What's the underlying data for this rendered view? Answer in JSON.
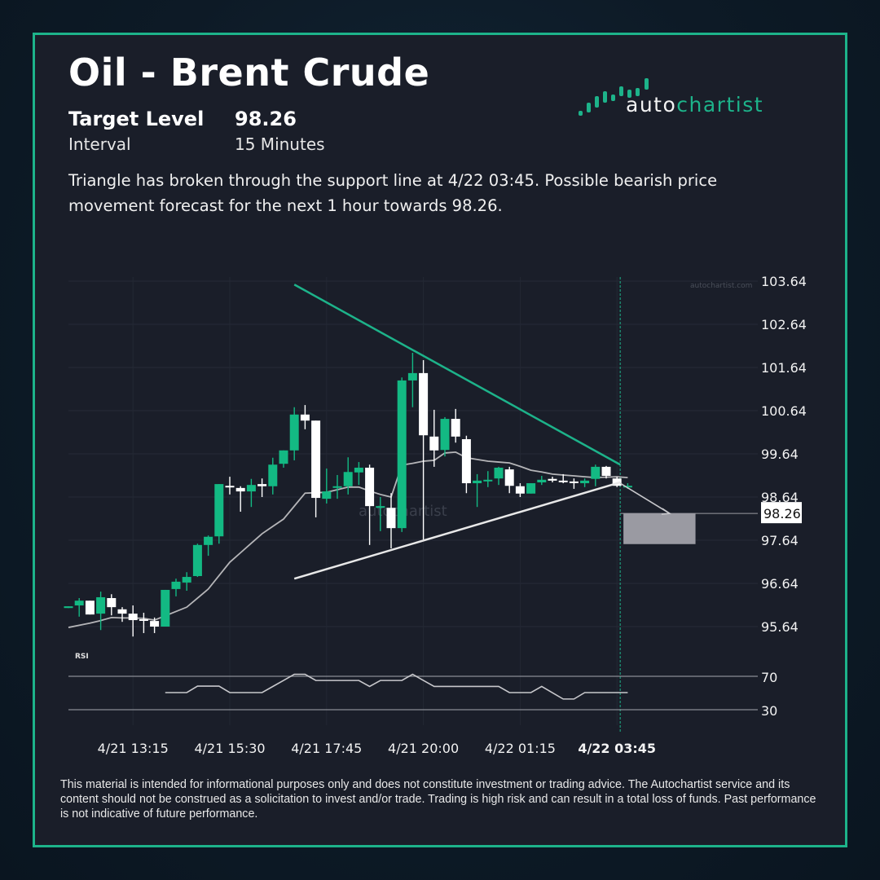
{
  "header": {
    "title": "Oil - Brent Crude",
    "target_label": "Target Level",
    "target_value": "98.26",
    "interval_label": "Interval",
    "interval_value": "15 Minutes",
    "description": "Triangle has broken through the support line at 4/22 03:45. Possible bearish price movement forecast for the next 1 hour towards 98.26."
  },
  "logo": {
    "text_a": "auto",
    "text_b": "chartist"
  },
  "disclaimer": "This material is intended for informational purposes only and does not constitute investment or trading advice. The Autochartist service and its content should not be construed as a solicitation to invest and/or trade. Trading is high risk and can result in a total loss of funds. Past performance is not indicative of future performance.",
  "colors": {
    "accent": "#1db38a",
    "bull": "#13b983",
    "bear": "#ffffff",
    "card_bg": "#1a1e29",
    "target_box": "#9a9aa2",
    "ma_line": "#b5b5b8"
  },
  "chart_data": {
    "type": "candlestick",
    "watermark": "autochartist",
    "site_label": "autochartist.com",
    "y_ticks": [
      "103.64",
      "102.64",
      "101.64",
      "100.64",
      "99.64",
      "98.64",
      "97.64",
      "96.64",
      "95.64"
    ],
    "ylim": [
      95.2,
      103.7
    ],
    "x_ticks": [
      {
        "bar": 6,
        "label": "4/21 13:15"
      },
      {
        "bar": 15,
        "label": "4/21 15:30"
      },
      {
        "bar": 24,
        "label": "4/21 17:45"
      },
      {
        "bar": 33,
        "label": "4/21 20:00"
      },
      {
        "bar": 42,
        "label": "4/22 01:15"
      },
      {
        "bar": 51,
        "label": "4/22 03:45",
        "bold": true
      }
    ],
    "candles": [
      [
        96.07,
        96.11,
        96.07,
        96.11
      ],
      [
        96.13,
        96.3,
        95.87,
        96.24
      ],
      [
        96.24,
        96.24,
        95.92,
        95.92
      ],
      [
        95.94,
        96.45,
        95.56,
        96.32
      ],
      [
        96.3,
        96.39,
        95.9,
        96.09
      ],
      [
        96.04,
        96.09,
        95.75,
        95.94
      ],
      [
        95.94,
        96.13,
        95.41,
        95.79
      ],
      [
        95.81,
        95.96,
        95.49,
        95.8
      ],
      [
        95.77,
        95.85,
        95.49,
        95.64
      ],
      [
        95.64,
        96.49,
        95.64,
        96.49
      ],
      [
        96.51,
        96.75,
        96.34,
        96.68
      ],
      [
        96.66,
        96.9,
        96.47,
        96.79
      ],
      [
        96.81,
        97.56,
        96.79,
        97.53
      ],
      [
        97.53,
        97.75,
        97.28,
        97.72
      ],
      [
        97.73,
        98.94,
        97.56,
        98.94
      ],
      [
        98.9,
        99.11,
        98.7,
        98.87
      ],
      [
        98.85,
        98.89,
        98.3,
        98.77
      ],
      [
        98.77,
        99.06,
        98.41,
        98.92
      ],
      [
        98.94,
        99.07,
        98.64,
        98.89
      ],
      [
        98.89,
        99.55,
        98.7,
        99.39
      ],
      [
        99.41,
        99.72,
        99.32,
        99.72
      ],
      [
        99.72,
        100.72,
        99.49,
        100.55
      ],
      [
        100.55,
        100.77,
        100.21,
        100.41
      ],
      [
        100.41,
        100.41,
        98.17,
        98.62
      ],
      [
        98.6,
        99.3,
        98.49,
        98.77
      ],
      [
        98.88,
        99.15,
        98.6,
        98.89
      ],
      [
        98.89,
        99.56,
        98.7,
        99.22
      ],
      [
        99.21,
        99.45,
        98.92,
        99.32
      ],
      [
        99.32,
        99.39,
        97.53,
        98.43
      ],
      [
        98.39,
        98.64,
        97.85,
        98.43
      ],
      [
        98.39,
        98.73,
        97.45,
        97.92
      ],
      [
        97.92,
        101.41,
        97.83,
        101.34
      ],
      [
        101.34,
        101.98,
        100.72,
        101.51
      ],
      [
        101.51,
        101.81,
        97.66,
        100.07
      ],
      [
        100.04,
        100.66,
        99.34,
        99.72
      ],
      [
        99.73,
        100.49,
        99.58,
        100.45
      ],
      [
        100.45,
        100.68,
        99.9,
        100.04
      ],
      [
        99.98,
        100.06,
        98.73,
        98.96
      ],
      [
        98.96,
        99.17,
        98.41,
        99.02
      ],
      [
        99.03,
        99.24,
        98.87,
        99.04
      ],
      [
        99.07,
        99.34,
        98.92,
        99.32
      ],
      [
        99.28,
        99.34,
        98.73,
        98.9
      ],
      [
        98.89,
        98.96,
        98.64,
        98.72
      ],
      [
        98.72,
        98.96,
        98.72,
        98.96
      ],
      [
        98.98,
        99.13,
        98.92,
        99.04
      ],
      [
        99.06,
        99.11,
        98.98,
        99.02
      ],
      [
        99.02,
        99.17,
        98.96,
        99.01
      ],
      [
        99.0,
        99.07,
        98.83,
        98.99
      ],
      [
        98.96,
        99.07,
        98.87,
        99.02
      ],
      [
        99.06,
        99.39,
        98.89,
        99.34
      ],
      [
        99.34,
        99.36,
        99.07,
        99.13
      ],
      [
        99.07,
        99.11,
        98.87,
        98.9
      ],
      [
        98.89,
        98.96,
        98.83,
        98.9
      ]
    ],
    "candle_format": [
      "open",
      "high",
      "low",
      "close"
    ],
    "moving_average": [
      95.62,
      95.67,
      95.72,
      95.78,
      95.85,
      95.84,
      95.84,
      95.83,
      95.79,
      95.89,
      95.99,
      96.09,
      96.3,
      96.51,
      96.82,
      97.13,
      97.35,
      97.57,
      97.79,
      97.96,
      98.13,
      98.43,
      98.73,
      98.74,
      98.75,
      98.81,
      98.87,
      98.87,
      98.78,
      98.7,
      98.64,
      99.38,
      99.42,
      99.47,
      99.49,
      99.66,
      99.68,
      99.55,
      99.51,
      99.47,
      99.45,
      99.43,
      99.35,
      99.26,
      99.22,
      99.17,
      99.15,
      99.13,
      99.11,
      99.09,
      99.1,
      99.11,
      99.09
    ],
    "resistance_line": {
      "from": {
        "bar": 21,
        "price": 103.56
      },
      "to": {
        "bar": 51.3,
        "price": 99.39
      }
    },
    "support_line": {
      "from": {
        "bar": 21,
        "price": 96.75
      },
      "to": {
        "bar": 51.3,
        "price": 98.98
      }
    },
    "breakout_bar": 51.3,
    "forecast_arrow": {
      "from": {
        "bar": 51.3,
        "price": 98.96
      },
      "to": {
        "bar": 55.9,
        "price": 98.26
      }
    },
    "target_zone": {
      "from_bar": 51.6,
      "to_bar": 58.3,
      "top": 98.26,
      "bottom": 97.55
    },
    "target_level": 98.26,
    "target_label": "98.26",
    "rsi": {
      "label": "RSI",
      "levels": [
        70,
        30
      ],
      "level_labels": [
        "70",
        "30"
      ],
      "values": [
        null,
        null,
        null,
        null,
        null,
        null,
        null,
        null,
        null,
        50.5,
        50.5,
        50.5,
        58.2,
        58.2,
        58.2,
        50.5,
        50.5,
        50.5,
        50.5,
        57.8,
        65.1,
        72.4,
        72.4,
        65,
        65,
        65,
        65,
        65,
        57.9,
        65,
        65,
        65,
        72.4,
        65.1,
        57.9,
        57.9,
        57.9,
        57.9,
        57.9,
        57.9,
        57.9,
        50.5,
        50.5,
        50.5,
        57.9,
        50.3,
        42.8,
        42.8,
        50.5,
        50.5,
        50.5,
        50.5,
        50.5
      ]
    }
  }
}
